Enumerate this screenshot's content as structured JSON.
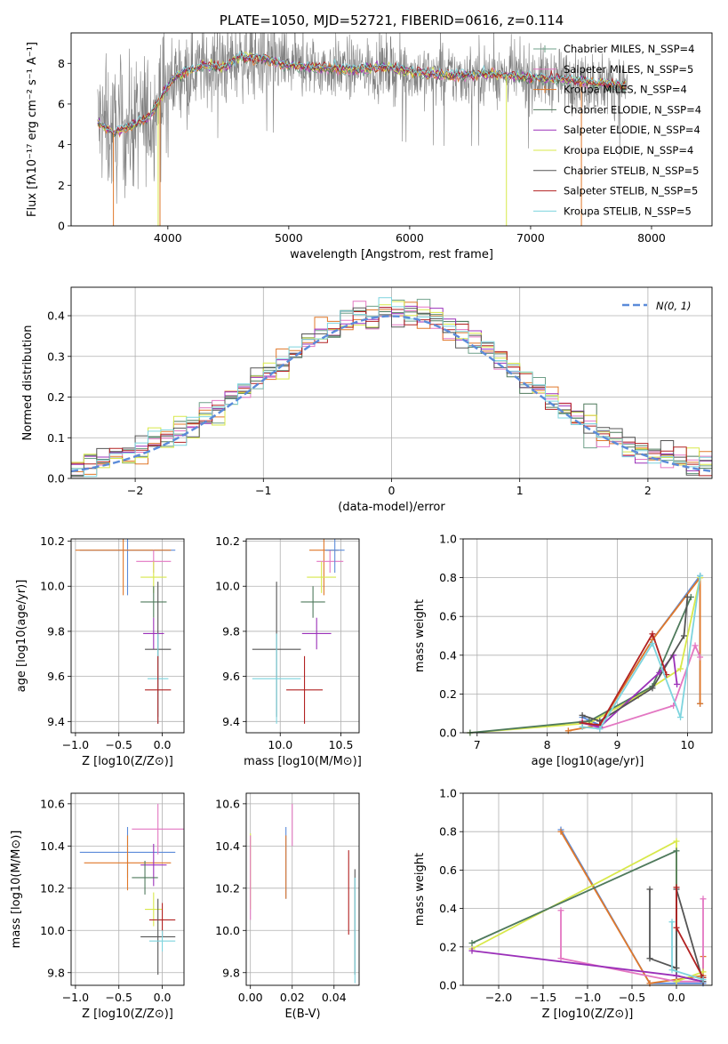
{
  "chart_data": [
    {
      "id": "spectrum",
      "type": "line",
      "title": "PLATE=1050, MJD=52721, FIBERID=0616, z=0.114",
      "xlabel": "wavelength [Angstrom, rest frame]",
      "ylabel": "Flux [fλ10⁻¹⁷ erg cm⁻² s⁻¹ A⁻¹]",
      "xlim": [
        3200,
        8500
      ],
      "ylim": [
        0,
        9.5
      ],
      "xticks": [
        4000,
        5000,
        6000,
        7000,
        8000
      ],
      "yticks": [
        0,
        2,
        4,
        6,
        8
      ],
      "grid": false,
      "legend_position": "right",
      "observed_color": "#808080",
      "model_envelope": {
        "x": [
          3420,
          3550,
          3700,
          3850,
          3950,
          4050,
          4150,
          4300,
          4450,
          4600,
          4800,
          5000,
          5200,
          5500,
          5800,
          6100,
          6400,
          6700,
          7000,
          7300,
          7600,
          7800
        ],
        "y": [
          5.1,
          4.6,
          4.9,
          5.4,
          6.4,
          7.3,
          7.6,
          7.9,
          7.8,
          8.3,
          8.2,
          7.9,
          7.8,
          7.7,
          7.8,
          7.5,
          7.4,
          7.5,
          7.3,
          7.2,
          7.0,
          6.9
        ]
      },
      "series": [
        {
          "name": "Chabrier MILES, N_SSP=4",
          "color": "#6fa089"
        },
        {
          "name": "Salpeter MILES, N_SSP=5",
          "color": "#e377c2"
        },
        {
          "name": "Kroupa MILES, N_SSP=4",
          "color": "#e0782a"
        },
        {
          "name": "Chabrier ELODIE, N_SSP=4",
          "color": "#4f7a5c"
        },
        {
          "name": "Salpeter ELODIE, N_SSP=4",
          "color": "#9b30b9"
        },
        {
          "name": "Kroupa ELODIE, N_SSP=4",
          "color": "#d8e84a"
        },
        {
          "name": "Chabrier STELIB, N_SSP=5",
          "color": "#555555"
        },
        {
          "name": "Salpeter STELIB, N_SSP=5",
          "color": "#b22222"
        },
        {
          "name": "Kroupa STELIB, N_SSP=5",
          "color": "#7dd4de"
        }
      ]
    },
    {
      "id": "residuals",
      "type": "line",
      "xlabel": "(data-model)/error",
      "ylabel": "Normed distribution",
      "xlim": [
        -2.5,
        2.5
      ],
      "ylim": [
        0,
        0.47
      ],
      "xticks": [
        -2,
        -1,
        0,
        1,
        2
      ],
      "yticks": [
        0.0,
        0.1,
        0.2,
        0.3,
        0.4
      ],
      "grid": true,
      "legend": "N(0, 1)",
      "legend_position": "top-right",
      "gaussian_color": "#5b8bd9"
    },
    {
      "id": "age-vs-Z",
      "type": "scatter",
      "xlabel": "Z [log10(Z/Z⊙)]",
      "ylabel": "age  [log10(age/yr)]",
      "xlim": [
        -1.05,
        0.25
      ],
      "ylim": [
        9.35,
        10.21
      ],
      "xticks": [
        -1.0,
        -0.5,
        0.0
      ],
      "yticks": [
        9.4,
        9.6,
        9.8,
        10.0,
        10.2
      ],
      "grid": true,
      "points": [
        {
          "x": -0.4,
          "y": 10.16,
          "xerr": 0.55,
          "yerr": 0.2,
          "color": "#5b8bd9"
        },
        {
          "x": -0.45,
          "y": 10.16,
          "xerr": 0.55,
          "yerr": 0.2,
          "color": "#e0782a"
        },
        {
          "x": -0.1,
          "y": 10.11,
          "xerr": 0.2,
          "yerr": 0.05,
          "color": "#e377c2"
        },
        {
          "x": -0.1,
          "y": 10.04,
          "xerr": 0.15,
          "yerr": 0.07,
          "color": "#d8e84a"
        },
        {
          "x": -0.1,
          "y": 9.93,
          "xerr": 0.15,
          "yerr": 0.07,
          "color": "#4f7a5c"
        },
        {
          "x": -0.1,
          "y": 9.79,
          "xerr": 0.12,
          "yerr": 0.07,
          "color": "#9b30b9"
        },
        {
          "x": -0.05,
          "y": 9.72,
          "xerr": 0.15,
          "yerr": 0.3,
          "color": "#555555"
        },
        {
          "x": -0.05,
          "y": 9.59,
          "xerr": 0.12,
          "yerr": 0.2,
          "color": "#7dd4de"
        },
        {
          "x": -0.05,
          "y": 9.54,
          "xerr": 0.15,
          "yerr": 0.15,
          "color": "#b22222"
        }
      ]
    },
    {
      "id": "age-vs-mass",
      "type": "scatter",
      "xlabel": "mass [log10(M/M⊙)]",
      "ylabel": "",
      "xlim": [
        9.72,
        10.65
      ],
      "ylim": [
        9.35,
        10.21
      ],
      "xticks": [
        10.0,
        10.5
      ],
      "yticks": [
        9.4,
        9.6,
        9.8,
        10.0,
        10.2
      ],
      "grid": true,
      "points": [
        {
          "x": 10.36,
          "y": 10.16,
          "xerr": 0.12,
          "yerr": 0.2,
          "color": "#e0782a"
        },
        {
          "x": 10.41,
          "y": 10.11,
          "xerr": 0.11,
          "yerr": 0.05,
          "color": "#e377c2"
        },
        {
          "x": 10.34,
          "y": 10.04,
          "xerr": 0.12,
          "yerr": 0.07,
          "color": "#d8e84a"
        },
        {
          "x": 10.27,
          "y": 9.93,
          "xerr": 0.1,
          "yerr": 0.07,
          "color": "#4f7a5c"
        },
        {
          "x": 10.3,
          "y": 9.79,
          "xerr": 0.12,
          "yerr": 0.07,
          "color": "#9b30b9"
        },
        {
          "x": 10.45,
          "y": 10.16,
          "xerr": 0.08,
          "yerr": 0.1,
          "color": "#5b8bd9"
        },
        {
          "x": 9.97,
          "y": 9.72,
          "xerr": 0.2,
          "yerr": 0.3,
          "color": "#555555"
        },
        {
          "x": 9.97,
          "y": 9.59,
          "xerr": 0.2,
          "yerr": 0.2,
          "color": "#7dd4de"
        },
        {
          "x": 10.2,
          "y": 9.54,
          "xerr": 0.15,
          "yerr": 0.15,
          "color": "#b22222"
        }
      ]
    },
    {
      "id": "massweight-vs-age",
      "type": "line",
      "xlabel": "age  [log10(age/yr)]",
      "ylabel": "mass weight",
      "xlim": [
        6.8,
        10.35
      ],
      "ylim": [
        0,
        1.0
      ],
      "xticks": [
        7,
        8,
        9,
        10
      ],
      "yticks": [
        0.0,
        0.2,
        0.4,
        0.6,
        0.8,
        1.0
      ],
      "grid": true,
      "series": [
        {
          "color": "#5b8bd9",
          "x": [
            8.5,
            8.75,
            9.5,
            10.18,
            10.18
          ],
          "y": [
            0.08,
            0.04,
            0.48,
            0.81,
            0.15
          ]
        },
        {
          "color": "#e0782a",
          "x": [
            8.3,
            8.75,
            9.5,
            10.18,
            10.18
          ],
          "y": [
            0.01,
            0.04,
            0.48,
            0.8,
            0.15
          ]
        },
        {
          "color": "#e377c2",
          "x": [
            8.5,
            8.75,
            9.8,
            10.11,
            10.18
          ],
          "y": [
            0.06,
            0.02,
            0.14,
            0.45,
            0.39
          ]
        },
        {
          "color": "#d8e84a",
          "x": [
            6.9,
            8.6,
            9.3,
            9.9,
            10.18
          ],
          "y": [
            0.0,
            0.05,
            0.19,
            0.33,
            0.8
          ]
        },
        {
          "color": "#4f7a5c",
          "x": [
            6.9,
            8.6,
            9.5,
            10.05
          ],
          "y": [
            0.0,
            0.06,
            0.24,
            0.7
          ]
        },
        {
          "color": "#9b30b9",
          "x": [
            8.5,
            8.75,
            9.6,
            9.8,
            9.85
          ],
          "y": [
            0.05,
            0.03,
            0.31,
            0.4,
            0.25
          ]
        },
        {
          "color": "#555555",
          "x": [
            8.5,
            8.75,
            9.5,
            9.95,
            10.0
          ],
          "y": [
            0.09,
            0.06,
            0.23,
            0.5,
            0.7
          ]
        },
        {
          "color": "#b22222",
          "x": [
            8.5,
            8.75,
            9.5,
            9.7
          ],
          "y": [
            0.05,
            0.04,
            0.51,
            0.3
          ]
        },
        {
          "color": "#7dd4de",
          "x": [
            8.5,
            8.75,
            9.5,
            9.9,
            10.18
          ],
          "y": [
            0.03,
            0.02,
            0.46,
            0.08,
            0.81
          ]
        }
      ]
    },
    {
      "id": "mass-vs-Z",
      "type": "scatter",
      "xlabel": "Z [log10(Z/Z⊙)]",
      "ylabel": "mass [log10(M/M⊙)]",
      "xlim": [
        -1.05,
        0.25
      ],
      "ylim": [
        9.74,
        10.65
      ],
      "xticks": [
        -1.0,
        -0.5,
        0.0
      ],
      "yticks": [
        9.8,
        10.0,
        10.2,
        10.4,
        10.6
      ],
      "grid": true,
      "points": [
        {
          "x": -0.4,
          "y": 10.37,
          "xerr": 0.55,
          "yerr": 0.12,
          "color": "#5b8bd9"
        },
        {
          "x": -0.4,
          "y": 10.32,
          "xerr": 0.5,
          "yerr": 0.13,
          "color": "#e0782a"
        },
        {
          "x": -0.05,
          "y": 10.48,
          "xerr": 0.3,
          "yerr": 0.12,
          "color": "#e377c2"
        },
        {
          "x": -0.1,
          "y": 10.31,
          "xerr": 0.15,
          "yerr": 0.1,
          "color": "#9b30b9"
        },
        {
          "x": -0.2,
          "y": 10.25,
          "xerr": 0.15,
          "yerr": 0.08,
          "color": "#4f7a5c"
        },
        {
          "x": -0.1,
          "y": 10.1,
          "xerr": 0.1,
          "yerr": 0.08,
          "color": "#d8e84a"
        },
        {
          "x": 0.0,
          "y": 10.05,
          "xerr": 0.15,
          "yerr": 0.08,
          "color": "#b22222"
        },
        {
          "x": -0.05,
          "y": 9.97,
          "xerr": 0.2,
          "yerr": 0.18,
          "color": "#555555"
        },
        {
          "x": 0.0,
          "y": 9.95,
          "xerr": 0.15,
          "yerr": 0.05,
          "color": "#7dd4de"
        }
      ]
    },
    {
      "id": "mass-vs-EBV",
      "type": "scatter",
      "xlabel": "E(B-V)",
      "ylabel": "",
      "xlim": [
        -0.002,
        0.052
      ],
      "ylim": [
        9.74,
        10.65
      ],
      "xticks": [
        0.0,
        0.02,
        0.04
      ],
      "yticks": [
        9.8,
        10.0,
        10.2,
        10.4,
        10.6
      ],
      "grid": true,
      "points": [
        {
          "x": 0.0,
          "y": 10.28,
          "xerr": 0,
          "yerr": 0.18,
          "color": "#d8e84a"
        },
        {
          "x": 0.0,
          "y": 10.25,
          "xerr": 0,
          "yerr": 0.2,
          "color": "#e377c2"
        },
        {
          "x": 0.017,
          "y": 10.32,
          "xerr": 0,
          "yerr": 0.17,
          "color": "#5b8bd9"
        },
        {
          "x": 0.017,
          "y": 10.3,
          "xerr": 0,
          "yerr": 0.15,
          "color": "#e0782a"
        },
        {
          "x": 0.02,
          "y": 10.5,
          "xerr": 0,
          "yerr": 0.1,
          "color": "#e377c2"
        },
        {
          "x": 0.047,
          "y": 10.18,
          "xerr": 0,
          "yerr": 0.2,
          "color": "#b22222"
        },
        {
          "x": 0.05,
          "y": 10.04,
          "xerr": 0,
          "yerr": 0.25,
          "color": "#555555"
        },
        {
          "x": 0.05,
          "y": 10.0,
          "xerr": 0,
          "yerr": 0.25,
          "color": "#7dd4de"
        }
      ]
    },
    {
      "id": "massweight-vs-Z",
      "type": "line",
      "xlabel": "Z [log10(Z/Z⊙)]",
      "ylabel": "mass weight",
      "xlim": [
        -2.4,
        0.4
      ],
      "ylim": [
        0,
        1.0
      ],
      "xticks": [
        -2.0,
        -1.5,
        -1.0,
        -0.5,
        0.0
      ],
      "yticks": [
        0.0,
        0.2,
        0.4,
        0.6,
        0.8,
        1.0
      ],
      "grid": true,
      "series": [
        {
          "color": "#5b8bd9",
          "x": [
            -1.3,
            -0.3,
            0.3
          ],
          "y": [
            0.81,
            0.01,
            0.01
          ]
        },
        {
          "color": "#e0782a",
          "x": [
            -1.3,
            -0.3,
            0.3,
            0.3
          ],
          "y": [
            0.8,
            0.01,
            0.05,
            0.15
          ]
        },
        {
          "color": "#e377c2",
          "x": [
            -1.3,
            -1.3,
            0.0,
            0.3,
            0.3
          ],
          "y": [
            0.39,
            0.14,
            0.02,
            0.02,
            0.45
          ]
        },
        {
          "color": "#d8e84a",
          "x": [
            -2.3,
            0.0,
            0.0,
            0.3
          ],
          "y": [
            0.19,
            0.75,
            0.02,
            0.07
          ]
        },
        {
          "color": "#4f7a5c",
          "x": [
            -2.3,
            0.0,
            0.0,
            0.3
          ],
          "y": [
            0.22,
            0.7,
            0.05,
            0.02
          ]
        },
        {
          "color": "#9b30b9",
          "x": [
            -2.3,
            0.0,
            0.3
          ],
          "y": [
            0.18,
            0.05,
            0.02
          ]
        },
        {
          "color": "#555555",
          "x": [
            -0.3,
            -0.3,
            0.0,
            0.0,
            0.3
          ],
          "y": [
            0.5,
            0.14,
            0.09,
            0.5,
            0.02
          ]
        },
        {
          "color": "#b22222",
          "x": [
            0.0,
            0.0,
            0.3
          ],
          "y": [
            0.51,
            0.3,
            0.04
          ]
        },
        {
          "color": "#7dd4de",
          "x": [
            -0.05,
            -0.05,
            0.3
          ],
          "y": [
            0.33,
            0.08,
            0.03
          ]
        }
      ]
    }
  ]
}
